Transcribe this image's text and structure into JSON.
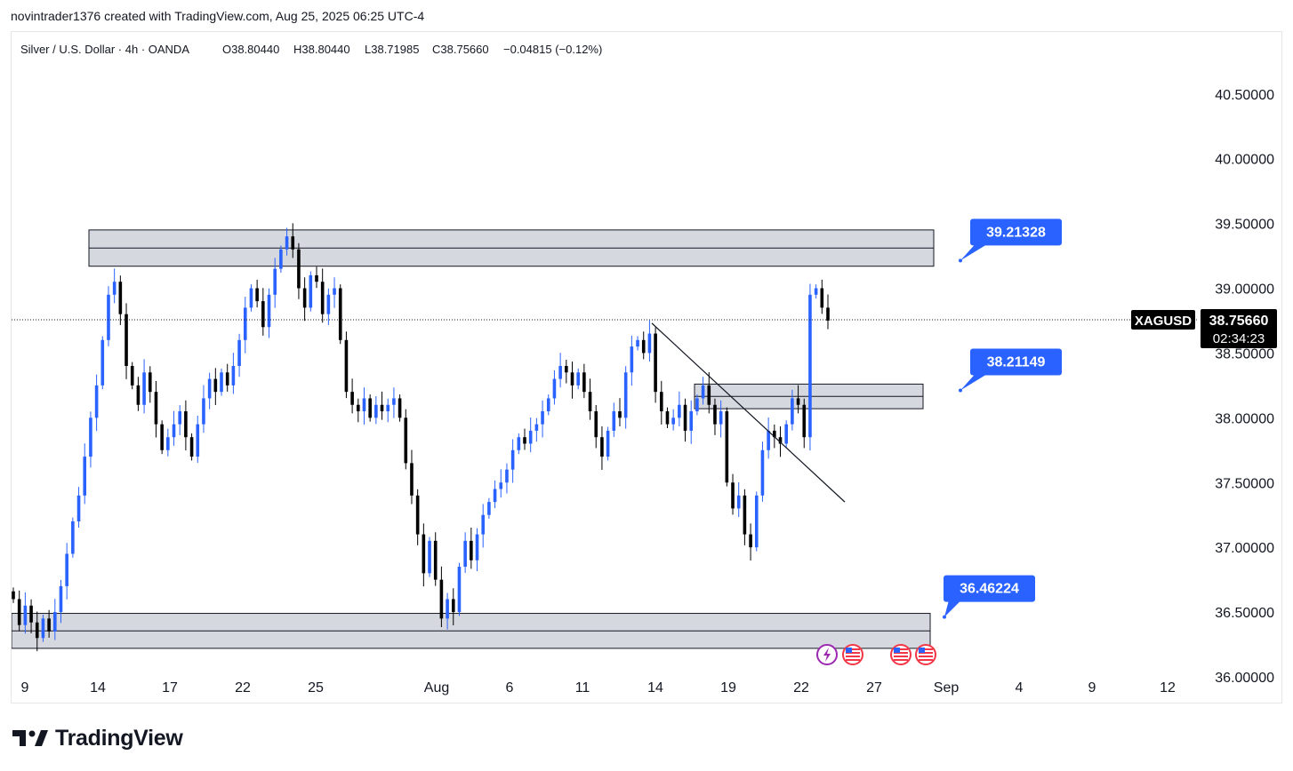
{
  "credit": "novintrader1376 created with TradingView.com, Aug 25, 2025 06:25 UTC-4",
  "brand": {
    "name": "TradingView",
    "logo_icon": "tradingview-logo-icon"
  },
  "colors": {
    "up": "#2962ff",
    "down": "#000000",
    "callout": "#2962ff",
    "zone_fill": "#d1d4dc",
    "price_label_bg": "#000000"
  },
  "chart_data": {
    "type": "candlestick",
    "symbol": "Silver / U.S. Dollar",
    "interval": "4h",
    "source": "OANDA",
    "header": {
      "name": "Silver / U.S. Dollar · 4h · OANDA",
      "open": "O38.80440",
      "high": "H38.80440",
      "low": "L38.71985",
      "close": "C38.75660",
      "change": "−0.04815 (−0.12%)"
    },
    "ylim": [
      36.0,
      40.8
    ],
    "y_ticks": [
      "40.50000",
      "40.00000",
      "39.50000",
      "39.00000",
      "38.50000",
      "38.00000",
      "37.50000",
      "37.00000",
      "36.50000",
      "36.00000"
    ],
    "x_ticks": [
      "9",
      "14",
      "17",
      "22",
      "25",
      "Aug",
      "6",
      "11",
      "14",
      "19",
      "22",
      "27",
      "Sep",
      "4",
      "9",
      "12"
    ],
    "current_price": {
      "ticker": "XAGUSD",
      "price": "38.75660",
      "countdown": "02:34:23",
      "value": 38.7566
    },
    "zones": [
      {
        "name": "resistance-zone",
        "from": 39.17,
        "to": 39.45
      },
      {
        "name": "breakout-zone",
        "from": 38.07,
        "to": 38.26
      },
      {
        "name": "support-zone",
        "from": 36.22,
        "to": 36.49
      }
    ],
    "trendline": {
      "from": [
        "Aug 14",
        38.73
      ],
      "to": [
        "Aug 24",
        37.35
      ]
    },
    "callouts": [
      {
        "label": "39.21328",
        "value": 39.21328
      },
      {
        "label": "38.21149",
        "value": 38.21149
      },
      {
        "label": "36.46224",
        "value": 36.46224
      }
    ],
    "event_icons": [
      "lightning-icon",
      "us-flag-icon",
      "us-flag-icon",
      "us-flag-icon"
    ],
    "closes": [
      36.6,
      36.4,
      36.55,
      36.42,
      36.3,
      36.45,
      36.35,
      36.5,
      36.7,
      36.95,
      37.2,
      37.4,
      37.7,
      38.0,
      38.25,
      38.6,
      38.95,
      39.05,
      38.8,
      38.4,
      38.25,
      38.1,
      38.35,
      38.2,
      37.95,
      37.75,
      37.85,
      37.95,
      38.05,
      37.85,
      37.7,
      37.95,
      38.15,
      38.3,
      38.2,
      38.35,
      38.25,
      38.4,
      38.6,
      38.85,
      39.0,
      38.9,
      38.7,
      38.95,
      39.15,
      39.3,
      39.4,
      39.3,
      39.0,
      38.85,
      39.1,
      39.05,
      38.8,
      38.95,
      39.0,
      38.6,
      38.2,
      38.1,
      38.05,
      38.15,
      38.0,
      38.1,
      38.05,
      38.1,
      38.15,
      38.0,
      37.65,
      37.4,
      37.1,
      36.8,
      37.05,
      36.75,
      36.45,
      36.6,
      36.5,
      36.85,
      37.05,
      36.9,
      37.1,
      37.25,
      37.35,
      37.45,
      37.5,
      37.6,
      37.75,
      37.85,
      37.8,
      37.9,
      37.95,
      38.05,
      38.15,
      38.3,
      38.4,
      38.35,
      38.25,
      38.35,
      38.2,
      38.05,
      37.85,
      37.7,
      37.9,
      38.05,
      38.0,
      38.35,
      38.55,
      38.6,
      38.5,
      38.65,
      38.2,
      38.05,
      37.95,
      38.0,
      38.1,
      37.9,
      38.05,
      38.15,
      38.25,
      38.1,
      37.95,
      38.05,
      37.5,
      37.3,
      37.4,
      37.1,
      37.0,
      37.4,
      37.75,
      37.9,
      37.85,
      37.8,
      37.95,
      38.15,
      38.1,
      37.85,
      38.95,
      39.0,
      38.85,
      38.75
    ]
  }
}
